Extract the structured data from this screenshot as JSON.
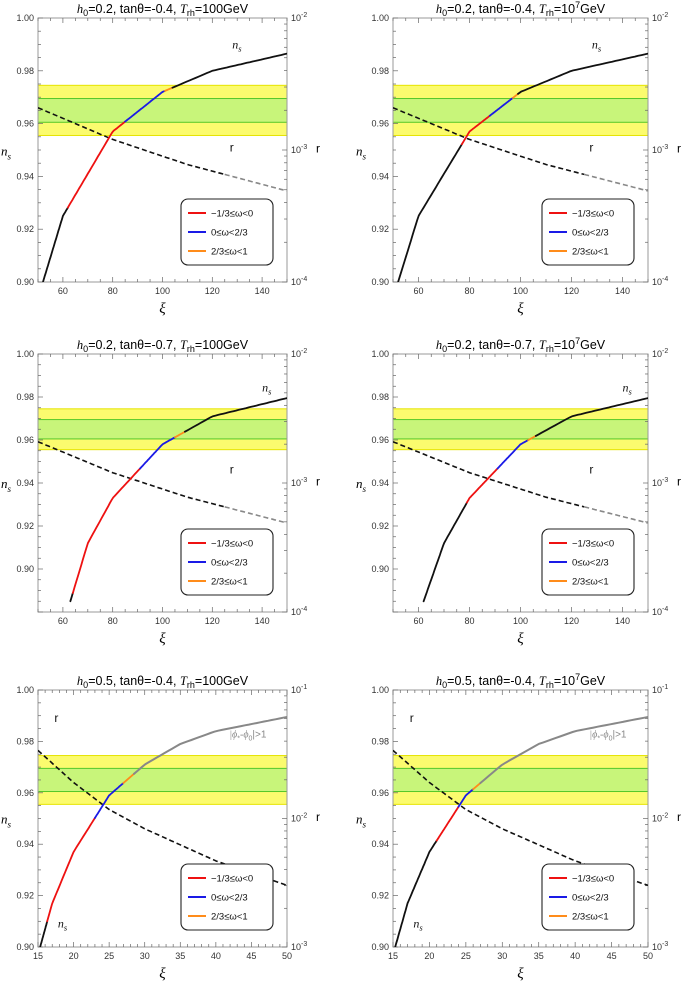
{
  "figure": {
    "panel_count": 6
  },
  "colors": {
    "yellow_band": "#fbfb6e",
    "yellow_border": "#e6e400",
    "green_band": "#c8f57a",
    "green_border": "#55c82a",
    "red": "#ee1111",
    "blue": "#1a1ae6",
    "orange": "#ff8c1a",
    "black": "#111111",
    "gray": "#888888"
  },
  "chart_data": [
    {
      "type": "line",
      "id": "p1",
      "title": {
        "base": "h",
        "sub": "0",
        "eq": "=0.2, tanθ=-0.4, ",
        "T": "T",
        "Tsub": "rh",
        "value": "=100GeV",
        "sup": ""
      },
      "xlabel": "ξ",
      "ylabel": "n",
      "ylabel_sub": "s",
      "y2label": "r",
      "xlim": [
        50,
        150
      ],
      "xticks": [
        60,
        80,
        100,
        120,
        140
      ],
      "xtick_labels": [
        "60",
        "80",
        "100",
        "120",
        "140"
      ],
      "ylim": [
        0.9,
        1.0
      ],
      "yticks": [
        0.9,
        0.92,
        0.94,
        0.96,
        0.98,
        1.0
      ],
      "ytick_labels": [
        "0.90",
        "0.92",
        "0.94",
        "0.96",
        "0.98",
        "1.00"
      ],
      "y2_log_range": [
        -4,
        -2
      ],
      "y2ticks": [
        -4,
        -3,
        -2
      ],
      "y2_exp_labels": [
        "-4",
        "-3",
        "-2"
      ],
      "bands": {
        "yellow": [
          0.9555,
          0.9745
        ],
        "green": [
          0.9605,
          0.9695
        ]
      },
      "ns_curve": {
        "x": [
          52,
          60,
          80,
          100,
          120,
          150
        ],
        "y": [
          0.9,
          0.925,
          0.957,
          0.972,
          0.98,
          0.9865
        ]
      },
      "segments": [
        {
          "color": "black",
          "from": 52,
          "to": 62
        },
        {
          "color": "red",
          "from": 62,
          "to": 85
        },
        {
          "color": "blue",
          "from": 85,
          "to": 101
        },
        {
          "color": "orange",
          "from": 101,
          "to": 104
        },
        {
          "color": "black",
          "from": 104,
          "to": 150
        }
      ],
      "r_curve": {
        "x": [
          50,
          80,
          110,
          150
        ],
        "log10r": [
          -2.68,
          -2.92,
          -3.11,
          -3.31
        ]
      },
      "r_gray_from": 125,
      "curve_labels": [
        {
          "kind": "ns",
          "text": "n",
          "sub": "s",
          "x": 128,
          "y": 0.9885
        },
        {
          "kind": "r",
          "text": "r",
          "x": 127,
          "y": 0.9495
        }
      ],
      "legend": [
        {
          "color": "red",
          "label": "−1/3≤ω<0"
        },
        {
          "color": "blue",
          "label": "0≤ω<2/3"
        },
        {
          "color": "orange",
          "label": "2/3≤ω<1"
        }
      ]
    },
    {
      "type": "line",
      "id": "p2",
      "title": {
        "base": "h",
        "sub": "0",
        "eq": "=0.2, tanθ=-0.4, ",
        "T": "T",
        "Tsub": "rh",
        "value": "=10",
        "sup": "7",
        "after": "GeV"
      },
      "xlabel": "ξ",
      "ylabel": "n",
      "ylabel_sub": "s",
      "y2label": "r",
      "xlim": [
        50,
        150
      ],
      "xticks": [
        60,
        80,
        100,
        120,
        140
      ],
      "xtick_labels": [
        "60",
        "80",
        "100",
        "120",
        "140"
      ],
      "ylim": [
        0.9,
        1.0
      ],
      "yticks": [
        0.9,
        0.92,
        0.94,
        0.96,
        0.98,
        1.0
      ],
      "ytick_labels": [
        "0.90",
        "0.92",
        "0.94",
        "0.96",
        "0.98",
        "1.00"
      ],
      "y2_log_range": [
        -4,
        -2
      ],
      "y2ticks": [
        -4,
        -3,
        -2
      ],
      "y2_exp_labels": [
        "-4",
        "-3",
        "-2"
      ],
      "bands": {
        "yellow": [
          0.9555,
          0.9745
        ],
        "green": [
          0.9605,
          0.9695
        ]
      },
      "ns_curve": {
        "x": [
          52,
          60,
          80,
          100,
          120,
          150
        ],
        "y": [
          0.9,
          0.925,
          0.957,
          0.972,
          0.98,
          0.9865
        ]
      },
      "segments": [
        {
          "color": "black",
          "from": 52,
          "to": 77
        },
        {
          "color": "red",
          "from": 77,
          "to": 88
        },
        {
          "color": "blue",
          "from": 88,
          "to": 97
        },
        {
          "color": "orange",
          "from": 97,
          "to": 99
        },
        {
          "color": "black",
          "from": 99,
          "to": 150
        }
      ],
      "r_curve": {
        "x": [
          50,
          80,
          110,
          150
        ],
        "log10r": [
          -2.68,
          -2.92,
          -3.11,
          -3.31
        ]
      },
      "r_gray_from": 125,
      "curve_labels": [
        {
          "kind": "ns",
          "text": "n",
          "sub": "s",
          "x": 128,
          "y": 0.9885
        },
        {
          "kind": "r",
          "text": "r",
          "x": 127,
          "y": 0.9495
        }
      ],
      "legend": [
        {
          "color": "red",
          "label": "−1/3≤ω<0"
        },
        {
          "color": "blue",
          "label": "0≤ω<2/3"
        },
        {
          "color": "orange",
          "label": "2/3≤ω<1"
        }
      ]
    },
    {
      "type": "line",
      "id": "p3",
      "title": {
        "base": "h",
        "sub": "0",
        "eq": "=0.2, tanθ=-0.7, ",
        "T": "T",
        "Tsub": "rh",
        "value": "=100GeV",
        "sup": ""
      },
      "xlabel": "ξ",
      "ylabel": "n",
      "ylabel_sub": "s",
      "y2label": "r",
      "xlim": [
        50,
        150
      ],
      "xticks": [
        60,
        80,
        100,
        120,
        140
      ],
      "xtick_labels": [
        "60",
        "80",
        "100",
        "120",
        "140"
      ],
      "ylim": [
        0.88,
        1.0
      ],
      "yticks": [
        0.9,
        0.92,
        0.94,
        0.96,
        0.98,
        1.0
      ],
      "ytick_labels": [
        "0.90",
        "0.92",
        "0.94",
        "0.96",
        "0.98",
        "1.00"
      ],
      "y2_log_range": [
        -4,
        -2
      ],
      "y2ticks": [
        -4,
        -3,
        -2
      ],
      "y2_exp_labels": [
        "-4",
        "-3",
        "-2"
      ],
      "bands": {
        "yellow": [
          0.9555,
          0.9745
        ],
        "green": [
          0.9605,
          0.9695
        ]
      },
      "ns_curve": {
        "x": [
          63,
          70,
          80,
          100,
          120,
          150
        ],
        "y": [
          0.885,
          0.912,
          0.933,
          0.958,
          0.971,
          0.9795
        ]
      },
      "segments": [
        {
          "color": "black",
          "from": 63,
          "to": 64
        },
        {
          "color": "red",
          "from": 64,
          "to": 91
        },
        {
          "color": "blue",
          "from": 91,
          "to": 105
        },
        {
          "color": "orange",
          "from": 105,
          "to": 109
        },
        {
          "color": "black",
          "from": 109,
          "to": 150
        }
      ],
      "r_curve": {
        "x": [
          50,
          80,
          110,
          150
        ],
        "log10r": [
          -2.68,
          -2.92,
          -3.11,
          -3.31
        ]
      },
      "r_gray_from": 125,
      "curve_labels": [
        {
          "kind": "ns",
          "text": "n",
          "sub": "s",
          "x": 140,
          "y": 0.9825
        },
        {
          "kind": "r",
          "text": "r",
          "x": 127,
          "y": 0.9445
        }
      ],
      "legend": [
        {
          "color": "red",
          "label": "−1/3≤ω<0"
        },
        {
          "color": "blue",
          "label": "0≤ω<2/3"
        },
        {
          "color": "orange",
          "label": "2/3≤ω<1"
        }
      ]
    },
    {
      "type": "line",
      "id": "p4",
      "title": {
        "base": "h",
        "sub": "0",
        "eq": "=0.2, tanθ=-0.7, ",
        "T": "T",
        "Tsub": "rh",
        "value": "=10",
        "sup": "7",
        "after": "GeV"
      },
      "xlabel": "ξ",
      "ylabel": "n",
      "ylabel_sub": "s",
      "y2label": "r",
      "xlim": [
        50,
        150
      ],
      "xticks": [
        60,
        80,
        100,
        120,
        140
      ],
      "xtick_labels": [
        "60",
        "80",
        "100",
        "120",
        "140"
      ],
      "ylim": [
        0.88,
        1.0
      ],
      "yticks": [
        0.9,
        0.92,
        0.94,
        0.96,
        0.98,
        1.0
      ],
      "ytick_labels": [
        "0.90",
        "0.92",
        "0.94",
        "0.96",
        "0.98",
        "1.00"
      ],
      "y2_log_range": [
        -4,
        -2
      ],
      "y2ticks": [
        -4,
        -3,
        -2
      ],
      "y2_exp_labels": [
        "-4",
        "-3",
        "-2"
      ],
      "bands": {
        "yellow": [
          0.9555,
          0.9745
        ],
        "green": [
          0.9605,
          0.9695
        ]
      },
      "ns_curve": {
        "x": [
          62,
          70,
          80,
          100,
          120,
          150
        ],
        "y": [
          0.885,
          0.912,
          0.933,
          0.958,
          0.971,
          0.9795
        ]
      },
      "segments": [
        {
          "color": "black",
          "from": 62,
          "to": 79
        },
        {
          "color": "red",
          "from": 79,
          "to": 91
        },
        {
          "color": "blue",
          "from": 91,
          "to": 103
        },
        {
          "color": "orange",
          "from": 103,
          "to": 106
        },
        {
          "color": "black",
          "from": 106,
          "to": 150
        }
      ],
      "r_curve": {
        "x": [
          50,
          80,
          110,
          150
        ],
        "log10r": [
          -2.68,
          -2.92,
          -3.11,
          -3.31
        ]
      },
      "r_gray_from": 125,
      "curve_labels": [
        {
          "kind": "ns",
          "text": "n",
          "sub": "s",
          "x": 140,
          "y": 0.9825
        },
        {
          "kind": "r",
          "text": "r",
          "x": 127,
          "y": 0.9445
        }
      ],
      "legend": [
        {
          "color": "red",
          "label": "−1/3≤ω<0"
        },
        {
          "color": "blue",
          "label": "0≤ω<2/3"
        },
        {
          "color": "orange",
          "label": "2/3≤ω<1"
        }
      ]
    },
    {
      "type": "line",
      "id": "p5",
      "title": {
        "base": "h",
        "sub": "0",
        "eq": "=0.5, tanθ=-0.4, ",
        "T": "T",
        "Tsub": "rh",
        "value": "=100GeV",
        "sup": ""
      },
      "xlabel": "ξ",
      "ylabel": "n",
      "ylabel_sub": "s",
      "y2label": "r",
      "xlim": [
        15,
        50
      ],
      "xticks": [
        15,
        20,
        25,
        30,
        35,
        40,
        45,
        50
      ],
      "xtick_labels": [
        "15",
        "20",
        "25",
        "30",
        "35",
        "40",
        "45",
        "50"
      ],
      "ylim": [
        0.9,
        1.0
      ],
      "yticks": [
        0.9,
        0.92,
        0.94,
        0.96,
        0.98,
        1.0
      ],
      "ytick_labels": [
        "0.90",
        "0.92",
        "0.94",
        "0.96",
        "0.98",
        "1.00"
      ],
      "y2_log_range": [
        -3,
        -1
      ],
      "y2ticks": [
        -3,
        -2,
        -1
      ],
      "y2_exp_labels": [
        "-3",
        "-2",
        "-1"
      ],
      "bands": {
        "yellow": [
          0.9555,
          0.9745
        ],
        "green": [
          0.9605,
          0.9695
        ]
      },
      "ns_curve": {
        "x": [
          15.3,
          17,
          20,
          25,
          30,
          35,
          40,
          50
        ],
        "y": [
          0.9,
          0.917,
          0.937,
          0.959,
          0.971,
          0.979,
          0.984,
          0.9895
        ]
      },
      "segments": [
        {
          "color": "black",
          "from": 15.3,
          "to": 16.3
        },
        {
          "color": "red",
          "from": 16.3,
          "to": 23
        },
        {
          "color": "blue",
          "from": 23,
          "to": 27
        },
        {
          "color": "orange",
          "from": 27,
          "to": 28.5
        },
        {
          "color": "gray",
          "from": 28.5,
          "to": 50
        }
      ],
      "r_curve": {
        "x": [
          15,
          20,
          25,
          30,
          40,
          50
        ],
        "log10r": [
          -1.47,
          -1.72,
          -1.93,
          -2.08,
          -2.33,
          -2.52
        ]
      },
      "r_gray_from": 60,
      "curve_labels": [
        {
          "kind": "r",
          "text": "r",
          "x": 17.3,
          "y": 0.9875
        },
        {
          "kind": "ns",
          "text": "n",
          "sub": "s",
          "x": 17.8,
          "y": 0.9075
        },
        {
          "kind": "annotation",
          "text": "|ϕ",
          "parts": [
            "|ϕ",
            "*",
            "-ϕ",
            "0",
            "|>1"
          ],
          "x": 44.5,
          "y": 0.9815
        }
      ],
      "legend": [
        {
          "color": "red",
          "label": "−1/3≤ω<0"
        },
        {
          "color": "blue",
          "label": "0≤ω<2/3"
        },
        {
          "color": "orange",
          "label": "2/3≤ω<1"
        }
      ]
    },
    {
      "type": "line",
      "id": "p6",
      "title": {
        "base": "h",
        "sub": "0",
        "eq": "=0.5, tanθ=-0.4, ",
        "T": "T",
        "Tsub": "rh",
        "value": "=10",
        "sup": "7",
        "after": "GeV"
      },
      "xlabel": "ξ",
      "ylabel": "n",
      "ylabel_sub": "s",
      "y2label": "r",
      "xlim": [
        15,
        50
      ],
      "xticks": [
        15,
        20,
        25,
        30,
        35,
        40,
        45,
        50
      ],
      "xtick_labels": [
        "15",
        "20",
        "25",
        "30",
        "35",
        "40",
        "45",
        "50"
      ],
      "ylim": [
        0.9,
        1.0
      ],
      "yticks": [
        0.9,
        0.92,
        0.94,
        0.96,
        0.98,
        1.0
      ],
      "ytick_labels": [
        "0.90",
        "0.92",
        "0.94",
        "0.96",
        "0.98",
        "1.00"
      ],
      "y2_log_range": [
        -3,
        -1
      ],
      "y2ticks": [
        -3,
        -2,
        -1
      ],
      "y2_exp_labels": [
        "-3",
        "-2",
        "-1"
      ],
      "bands": {
        "yellow": [
          0.9555,
          0.9745
        ],
        "green": [
          0.9605,
          0.9695
        ]
      },
      "ns_curve": {
        "x": [
          15.3,
          17,
          20,
          25,
          30,
          35,
          40,
          50
        ],
        "y": [
          0.9,
          0.917,
          0.937,
          0.959,
          0.971,
          0.979,
          0.984,
          0.9895
        ]
      },
      "segments": [
        {
          "color": "black",
          "from": 15.3,
          "to": 21
        },
        {
          "color": "red",
          "from": 21,
          "to": 24
        },
        {
          "color": "blue",
          "from": 24,
          "to": 26
        },
        {
          "color": "orange",
          "from": 26,
          "to": 27
        },
        {
          "color": "gray",
          "from": 27,
          "to": 50
        }
      ],
      "r_curve": {
        "x": [
          15,
          20,
          25,
          30,
          40,
          50
        ],
        "log10r": [
          -1.47,
          -1.72,
          -1.93,
          -2.08,
          -2.33,
          -2.52
        ]
      },
      "r_gray_from": 60,
      "curve_labels": [
        {
          "kind": "r",
          "text": "r",
          "x": 17.3,
          "y": 0.9875
        },
        {
          "kind": "ns",
          "text": "n",
          "sub": "s",
          "x": 17.8,
          "y": 0.9075
        },
        {
          "kind": "annotation",
          "text": "|ϕ",
          "parts": [
            "|ϕ",
            "*",
            "-ϕ",
            "0",
            "|>1"
          ],
          "x": 44.5,
          "y": 0.9815
        }
      ],
      "legend": [
        {
          "color": "red",
          "label": "−1/3≤ω<0"
        },
        {
          "color": "blue",
          "label": "0≤ω<2/3"
        },
        {
          "color": "orange",
          "label": "2/3≤ω<1"
        }
      ]
    }
  ]
}
